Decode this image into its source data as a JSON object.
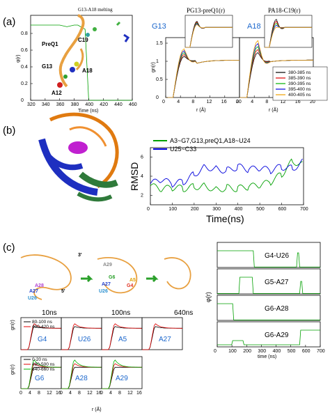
{
  "panels": {
    "a": "(a)",
    "b": "(b)",
    "c": "(c)"
  },
  "a": {
    "melt_title": "G13-A18 melting",
    "melt_ylabel": "φ(r)",
    "melt_xlabel": "Time (ns)",
    "melt_xticks": [
      "320",
      "340",
      "360",
      "380",
      "400",
      "420",
      "440",
      "460"
    ],
    "melt_yticks": [
      "0",
      "0.2",
      "0.4",
      "0.6",
      "0.8"
    ],
    "struct_labels": [
      "PreQ1",
      "C19",
      "G13",
      "A18",
      "A12"
    ],
    "g13_label": "G13",
    "a18_label": "A18",
    "g_title1": "PG13-preQ1(r)",
    "g_title2": "PA18-C19(r)",
    "g_ylabel": "gn(r)",
    "g_xlabel": "r (Å)",
    "g_xticks": [
      "0",
      "4",
      "8",
      "12",
      "16",
      "20"
    ],
    "g_yticks": [
      "0",
      "0.5",
      "1",
      "1.5"
    ],
    "legend": [
      {
        "label": "380-385 ns",
        "color": "#000000"
      },
      {
        "label": "385-390 ns",
        "color": "#e00000"
      },
      {
        "label": "390-395 ns",
        "color": "#00b000"
      },
      {
        "label": "395-400 ns",
        "color": "#0000e0"
      },
      {
        "label": "400-405 ns",
        "color": "#f0a000"
      }
    ]
  },
  "b": {
    "ylabel": "RMSD",
    "xlabel": "Time(ns)",
    "xticks": [
      "0",
      "100",
      "200",
      "300",
      "400",
      "500",
      "600",
      "700"
    ],
    "yticks": [
      "2",
      "4",
      "6"
    ],
    "legend": [
      {
        "label": "A3~G7,G13,preQ1,A18~U24",
        "color": "#00a000"
      },
      {
        "label": "U25~C33",
        "color": "#0000dd"
      }
    ]
  },
  "c": {
    "snap_times": [
      "10ns",
      "100ns",
      "640ns"
    ],
    "snap_labels": [
      "3'",
      "5'",
      "A28",
      "A27",
      "U26",
      "A29",
      "G6",
      "A5",
      "A27",
      "U26",
      "G4"
    ],
    "phi_ylabel": "φ(r)",
    "phi_xlabel": "time (ns)",
    "phi_xticks": [
      "0",
      "100",
      "200",
      "300",
      "400",
      "500",
      "600",
      "700"
    ],
    "phi_labels": [
      "G4-U26",
      "G5-A27",
      "G6-A28",
      "G6-A29"
    ],
    "gn_ylabel": "gn(r)",
    "gn_xlabel": "r (Å)",
    "gn_xticks": [
      "0",
      "4",
      "8",
      "12",
      "16"
    ],
    "gn_top_labels": [
      "G4",
      "U26",
      "A5",
      "A27"
    ],
    "gn_bot_labels": [
      "G6",
      "A28",
      "A29"
    ],
    "legend_top": [
      {
        "label": "80-100 ns",
        "color": "#000000"
      },
      {
        "label": "400-420 ns",
        "color": "#e00000"
      }
    ],
    "legend_bot": [
      {
        "label": "0-20 ns",
        "color": "#000000"
      },
      {
        "label": "480-500 ns",
        "color": "#e00000"
      },
      {
        "label": "640-660 ns",
        "color": "#00b000"
      }
    ]
  },
  "chart_data": [
    {
      "type": "line",
      "title": "G13-A18 melting",
      "xlabel": "Time (ns)",
      "ylabel": "φ(r)",
      "xlim": [
        320,
        460
      ],
      "ylim": [
        0,
        0.9
      ],
      "series": [
        {
          "name": "φ(r)",
          "color": "#00a000",
          "x": [
            320,
            360,
            370,
            380,
            385,
            395,
            400,
            410,
            460
          ],
          "values": [
            0.9,
            0.9,
            0.88,
            0.9,
            0.9,
            0.85,
            0,
            0,
            0
          ]
        }
      ]
    },
    {
      "type": "line",
      "title": "PG13-preQ1(r)",
      "xlabel": "r (Å)",
      "ylabel": "gn(r)",
      "xlim": [
        0,
        20
      ],
      "ylim": [
        0,
        1.5
      ],
      "series": [
        {
          "name": "380-385 ns",
          "values": [
            0,
            0.2,
            1.1,
            0.9,
            1.0,
            1.0
          ]
        },
        {
          "name": "400-405 ns",
          "values": [
            0,
            0.15,
            1.0,
            0.9,
            1.0,
            1.0
          ]
        }
      ]
    },
    {
      "type": "line",
      "title": "PA18-C19(r)",
      "xlabel": "r (Å)",
      "ylabel": "gn(r)",
      "xlim": [
        0,
        20
      ],
      "ylim": [
        0,
        1.5
      ],
      "series": [
        {
          "name": "385-390 ns",
          "values": [
            0,
            0.3,
            1.4,
            0.9,
            1.0,
            1.0
          ]
        },
        {
          "name": "395-400 ns",
          "values": [
            0,
            0.2,
            1.2,
            0.95,
            1.0,
            1.0
          ]
        }
      ]
    },
    {
      "type": "line",
      "xlabel": "Time(ns)",
      "ylabel": "RMSD",
      "xlim": [
        0,
        700
      ],
      "ylim": [
        1,
        7
      ],
      "series": [
        {
          "name": "A3~G7,G13,preQ1,A18~U24",
          "color": "#00a000",
          "x": [
            0,
            50,
            100,
            150,
            200,
            250,
            300,
            350,
            400,
            450,
            500,
            550,
            600,
            650,
            700
          ],
          "values": [
            3,
            2.6,
            2.8,
            2.7,
            2.9,
            3.0,
            2.6,
            2.8,
            2.7,
            2.9,
            3.0,
            3.4,
            4.2,
            5.6,
            5.2
          ]
        },
        {
          "name": "U25~C33",
          "color": "#0000dd",
          "x": [
            0,
            50,
            100,
            150,
            200,
            250,
            300,
            350,
            400,
            450,
            500,
            550,
            600,
            650,
            700
          ],
          "values": [
            3.2,
            3.6,
            3.2,
            3.4,
            4.2,
            5.0,
            4.8,
            4.6,
            5.0,
            4.7,
            4.8,
            4.6,
            5.0,
            4.8,
            5.6
          ]
        }
      ]
    },
    {
      "type": "line",
      "xlabel": "time (ns)",
      "ylabel": "φ(r)",
      "xlim": [
        0,
        700
      ],
      "series": [
        {
          "name": "G4-U26"
        },
        {
          "name": "G5-A27"
        },
        {
          "name": "G6-A28"
        },
        {
          "name": "G6-A29"
        }
      ]
    },
    {
      "type": "line",
      "xlabel": "r (Å)",
      "ylabel": "gn(r)",
      "xlim": [
        0,
        16
      ],
      "series": [
        {
          "name": "80-100 ns"
        },
        {
          "name": "400-420 ns"
        },
        {
          "name": "0-20 ns"
        },
        {
          "name": "480-500 ns"
        },
        {
          "name": "640-660 ns"
        }
      ]
    }
  ]
}
